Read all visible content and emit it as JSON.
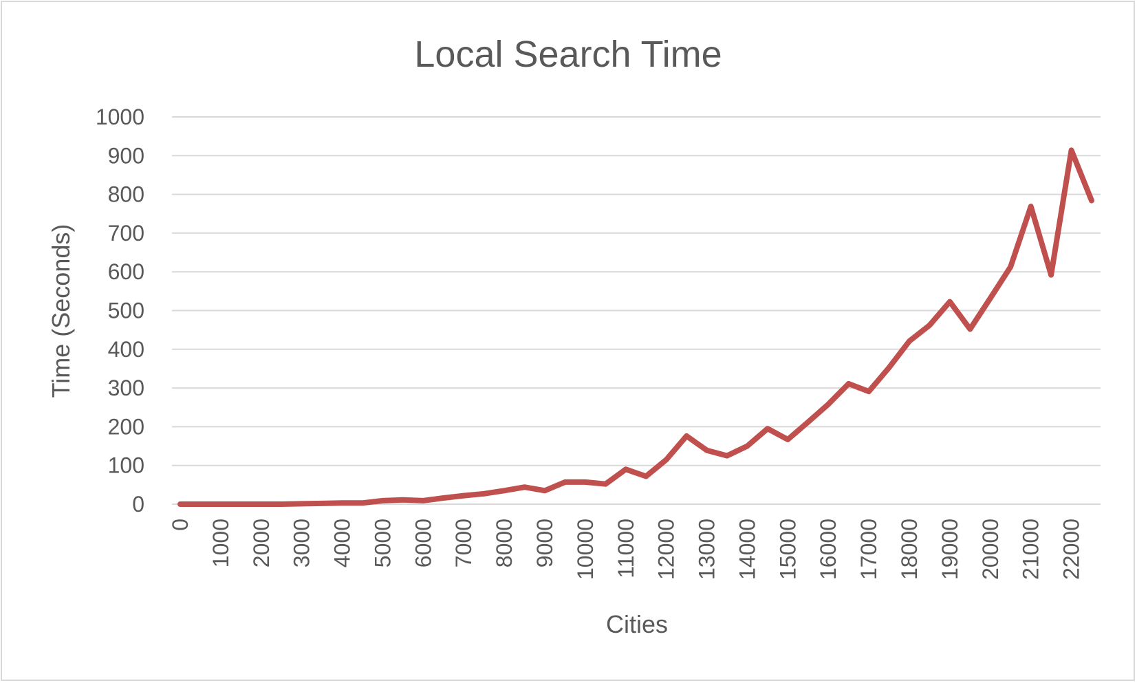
{
  "chart_data": {
    "type": "line",
    "title": "Local Search Time",
    "xlabel": "Cities",
    "ylabel": "Time (Seconds)",
    "ylim": [
      0,
      1000
    ],
    "y_ticks": [
      0,
      100,
      200,
      300,
      400,
      500,
      600,
      700,
      800,
      900,
      1000
    ],
    "x_ticks": [
      "0",
      "1000",
      "2000",
      "3000",
      "4000",
      "5000",
      "6000",
      "7000",
      "8000",
      "9000",
      "10000",
      "11000",
      "12000",
      "13000",
      "14000",
      "15000",
      "16000",
      "17000",
      "18000",
      "19000",
      "20000",
      "21000",
      "22000"
    ],
    "grid": true,
    "legend": "none",
    "series": [
      {
        "color": "#c0504d",
        "x": [
          0,
          500,
          1000,
          1500,
          2000,
          2500,
          3000,
          3500,
          4000,
          4500,
          5000,
          5500,
          6000,
          6500,
          7000,
          7500,
          8000,
          8500,
          9000,
          9500,
          10000,
          10500,
          11000,
          11500,
          12000,
          12500,
          13000,
          13500,
          14000,
          14500,
          15000,
          15500,
          16000,
          16500,
          17000,
          17500,
          18000,
          18500,
          19000,
          19500,
          20000,
          20500,
          21000,
          21500,
          22000,
          22500
        ],
        "y": [
          0,
          0,
          0,
          0,
          0,
          0,
          1,
          2,
          3,
          3,
          9,
          11,
          9,
          16,
          22,
          27,
          35,
          44,
          35,
          57,
          57,
          52,
          90,
          72,
          115,
          176,
          139,
          125,
          150,
          195,
          167,
          212,
          258,
          311,
          291,
          353,
          421,
          462,
          523,
          452,
          532,
          613,
          769,
          592,
          914,
          784
        ]
      }
    ]
  }
}
